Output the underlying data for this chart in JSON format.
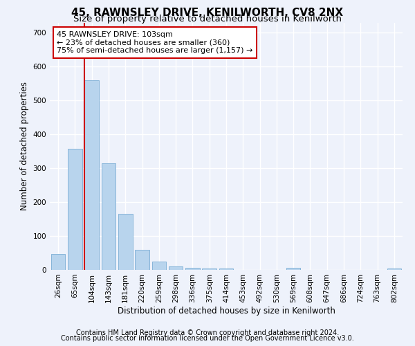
{
  "title": "45, RAWNSLEY DRIVE, KENILWORTH, CV8 2NX",
  "subtitle": "Size of property relative to detached houses in Kenilworth",
  "xlabel": "Distribution of detached houses by size in Kenilworth",
  "ylabel": "Number of detached properties",
  "bar_labels": [
    "26sqm",
    "65sqm",
    "104sqm",
    "143sqm",
    "181sqm",
    "220sqm",
    "259sqm",
    "298sqm",
    "336sqm",
    "375sqm",
    "414sqm",
    "453sqm",
    "492sqm",
    "530sqm",
    "569sqm",
    "608sqm",
    "647sqm",
    "686sqm",
    "724sqm",
    "763sqm",
    "802sqm"
  ],
  "bar_values": [
    47,
    357,
    560,
    315,
    165,
    60,
    25,
    11,
    7,
    5,
    5,
    0,
    0,
    0,
    7,
    0,
    0,
    0,
    0,
    0,
    5
  ],
  "bar_color": "#b8d4ed",
  "bar_edge_color": "#7aadd4",
  "property_line_color": "#cc0000",
  "annotation_text": "45 RAWNSLEY DRIVE: 103sqm\n← 23% of detached houses are smaller (360)\n75% of semi-detached houses are larger (1,157) →",
  "annotation_box_color": "#ffffff",
  "annotation_box_edge": "#cc0000",
  "ylim": [
    0,
    730
  ],
  "yticks": [
    0,
    100,
    200,
    300,
    400,
    500,
    600,
    700
  ],
  "footer_line1": "Contains HM Land Registry data © Crown copyright and database right 2024.",
  "footer_line2": "Contains public sector information licensed under the Open Government Licence v3.0.",
  "bg_color": "#eef2fb",
  "plot_bg_color": "#eef2fb",
  "grid_color": "#ffffff",
  "title_fontsize": 11,
  "subtitle_fontsize": 9.5,
  "axis_label_fontsize": 8.5,
  "tick_fontsize": 7.5,
  "footer_fontsize": 7
}
